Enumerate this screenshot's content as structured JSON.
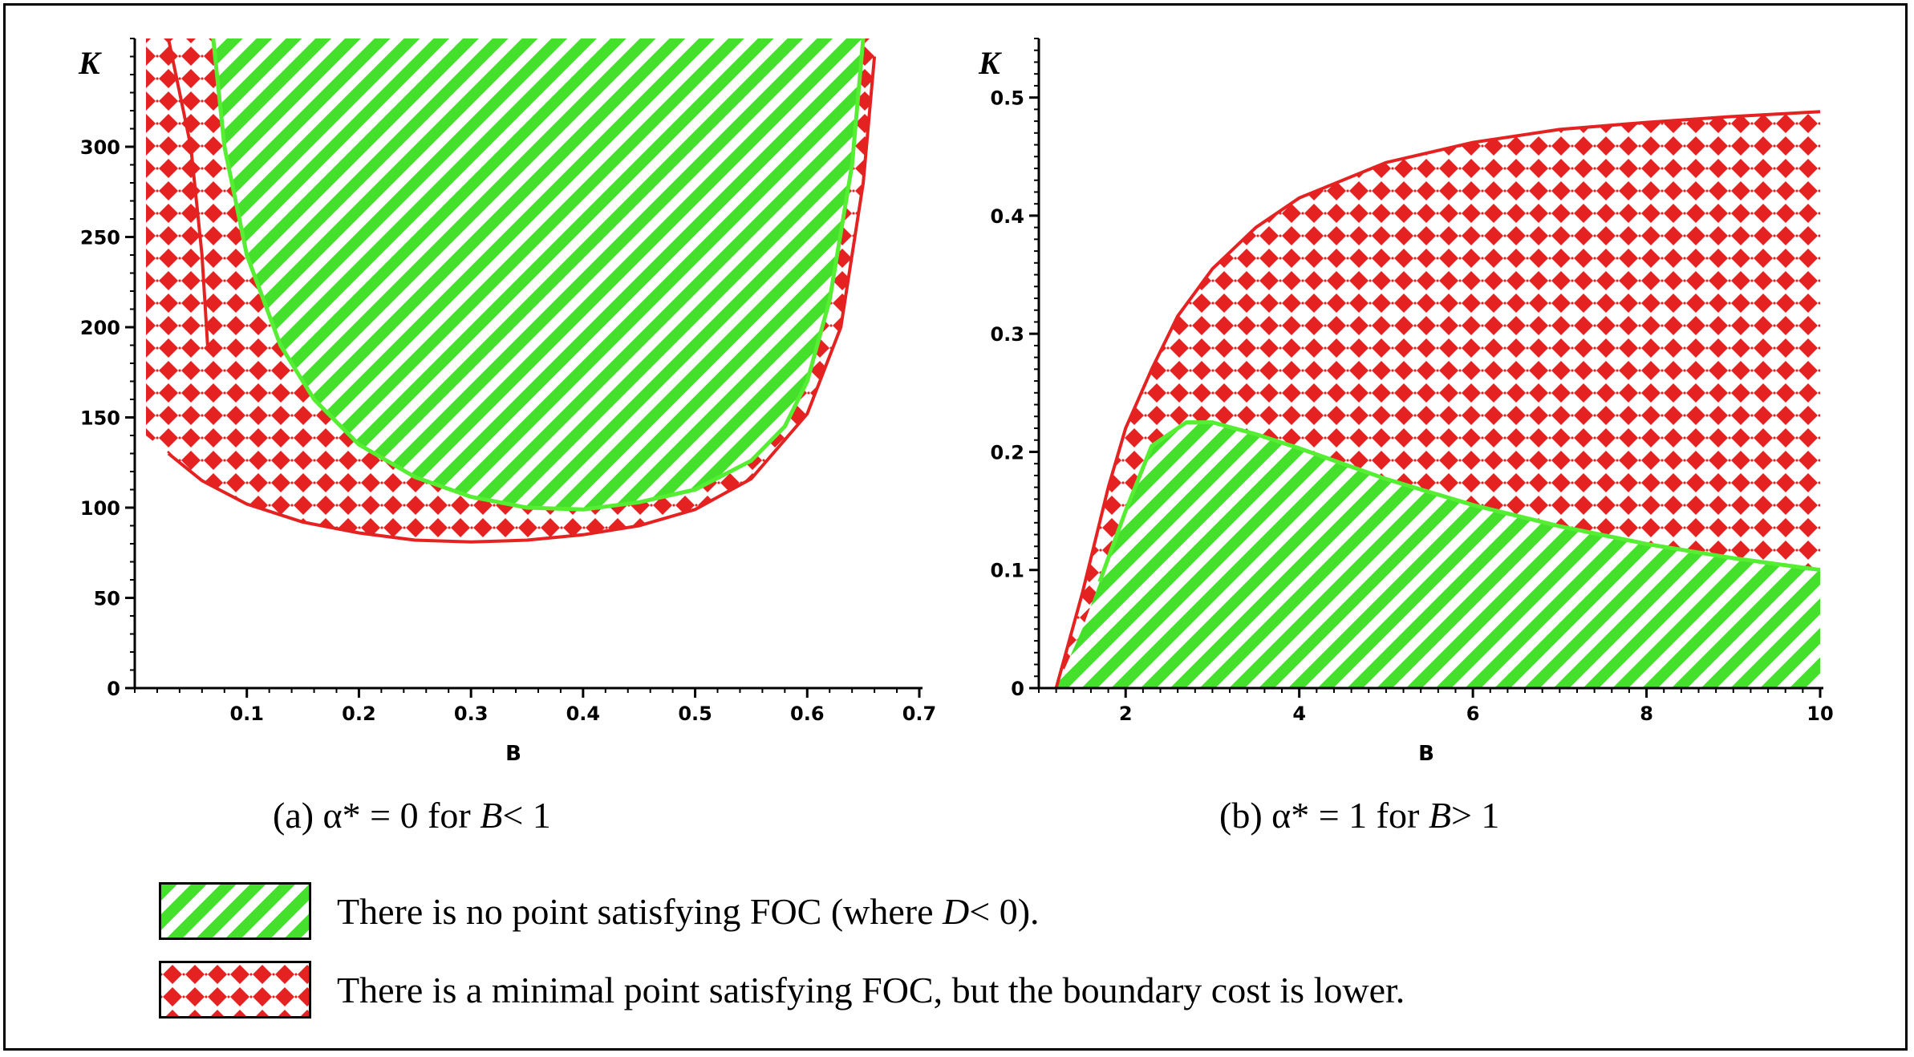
{
  "colors": {
    "green_region": "#44e02c",
    "red_region": "#e52222",
    "red_boundary": "#e52222",
    "green_boundary": "#55ee33"
  },
  "chart_data": [
    {
      "type": "area",
      "panel": "a",
      "caption_prefix": "(a) α* = 0 for ",
      "caption_var": "B",
      "caption_suffix": "< 1",
      "xlabel": "B",
      "ylabel": "K",
      "xlim": [
        0.0,
        0.7
      ],
      "ylim": [
        0,
        360
      ],
      "xticks": [
        0.1,
        0.2,
        0.3,
        0.4,
        0.5,
        0.6,
        0.7
      ],
      "xtick_labels": [
        "0.1",
        "0.2",
        "0.3",
        "0.4",
        "0.5",
        "0.6",
        "0.7"
      ],
      "yticks": [
        0,
        50,
        100,
        150,
        200,
        250,
        300
      ],
      "ytick_labels": [
        "0",
        "50",
        "100",
        "150",
        "200",
        "250",
        "300"
      ],
      "red_upper_left_boundary": {
        "x": [
          0.03,
          0.05,
          0.06,
          0.065
        ],
        "y": [
          360,
          300,
          240,
          190
        ]
      },
      "red_lower_boundary": {
        "x": [
          0.01,
          0.03,
          0.06,
          0.1,
          0.15,
          0.2,
          0.25,
          0.3,
          0.35,
          0.4,
          0.45,
          0.5,
          0.55,
          0.6,
          0.63,
          0.65,
          0.66
        ],
        "y": [
          140,
          130,
          115,
          102,
          92,
          86,
          82,
          81,
          82,
          85,
          90,
          99,
          116,
          152,
          200,
          280,
          350
        ]
      },
      "green_boundary": {
        "x": [
          0.07,
          0.08,
          0.1,
          0.13,
          0.16,
          0.2,
          0.25,
          0.3,
          0.35,
          0.4,
          0.45,
          0.5,
          0.55,
          0.58,
          0.6,
          0.62,
          0.64,
          0.65
        ],
        "y": [
          360,
          300,
          240,
          190,
          160,
          135,
          117,
          106,
          100,
          99,
          103,
          110,
          126,
          145,
          170,
          215,
          290,
          360
        ]
      }
    },
    {
      "type": "area",
      "panel": "b",
      "caption_prefix": "(b) α* = 1 for ",
      "caption_var": "B",
      "caption_suffix": "> 1",
      "xlabel": "B",
      "ylabel": "K",
      "xlim": [
        1.0,
        10.0
      ],
      "ylim": [
        0,
        0.55
      ],
      "xticks": [
        2,
        4,
        6,
        8,
        10
      ],
      "xtick_labels": [
        "2",
        "4",
        "6",
        "8",
        "10"
      ],
      "yticks": [
        0,
        0.1,
        0.2,
        0.3,
        0.4,
        0.5
      ],
      "ytick_labels": [
        "0",
        "0.1",
        "0.2",
        "0.3",
        "0.4",
        "0.5"
      ],
      "red_upper_boundary": {
        "x": [
          1.2,
          1.5,
          1.8,
          2.0,
          2.3,
          2.6,
          3.0,
          3.5,
          4.0,
          5.0,
          6.0,
          7.0,
          8.0,
          9.0,
          10.0
        ],
        "y": [
          0.0,
          0.08,
          0.17,
          0.22,
          0.27,
          0.315,
          0.355,
          0.39,
          0.415,
          0.445,
          0.462,
          0.473,
          0.479,
          0.484,
          0.488
        ]
      },
      "green_boundary": {
        "x": [
          1.7,
          2.0,
          2.3,
          2.7,
          3.0,
          3.5,
          4.0,
          5.0,
          6.0,
          7.0,
          8.0,
          9.0,
          10.0
        ],
        "y": [
          0.09,
          0.15,
          0.205,
          0.225,
          0.225,
          0.215,
          0.203,
          0.177,
          0.155,
          0.137,
          0.122,
          0.11,
          0.1
        ]
      }
    }
  ],
  "legend": [
    {
      "key": "green",
      "text": "There is no point satisfying FOC (where ",
      "var": "D",
      "text_after": "< 0)."
    },
    {
      "key": "red",
      "text": "There is a minimal point satisfying FOC, but the boundary cost is lower.",
      "var": "",
      "text_after": ""
    }
  ]
}
